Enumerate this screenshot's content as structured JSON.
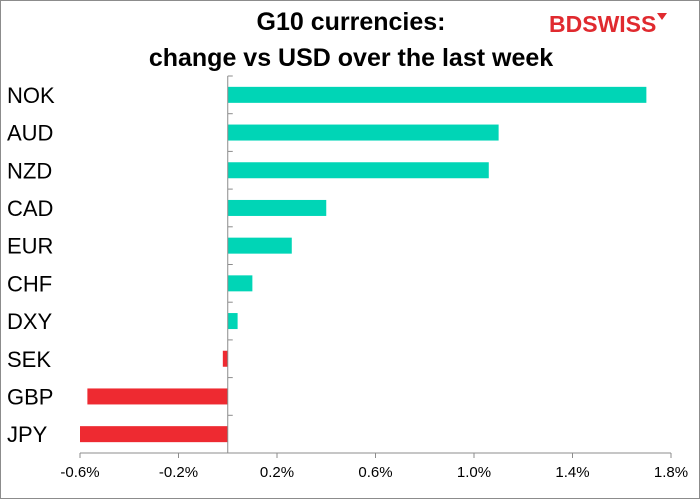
{
  "chart_data": {
    "type": "bar",
    "orientation": "horizontal",
    "title_line1": "G10 currencies:",
    "title_line2": "change vs USD over the last week",
    "categories": [
      "NOK",
      "AUD",
      "NZD",
      "CAD",
      "EUR",
      "CHF",
      "DXY",
      "SEK",
      "GBP",
      "JPY"
    ],
    "values": [
      1.7,
      1.1,
      1.06,
      0.4,
      0.26,
      0.1,
      0.04,
      -0.02,
      -0.57,
      -0.6
    ],
    "xlim": [
      -0.6,
      1.8
    ],
    "xticks": [
      -0.6,
      -0.2,
      0.2,
      0.6,
      1.0,
      1.4,
      1.8
    ],
    "xtick_labels": [
      "-0.6%",
      "-0.2%",
      "0.2%",
      "0.6%",
      "1.0%",
      "1.4%",
      "1.8%"
    ],
    "positive_color": "#00d5b6",
    "negative_color": "#ee2a31",
    "grid": false,
    "legend": "none"
  },
  "logo": {
    "text_bd": "BD",
    "text_swiss": "SWISS"
  }
}
